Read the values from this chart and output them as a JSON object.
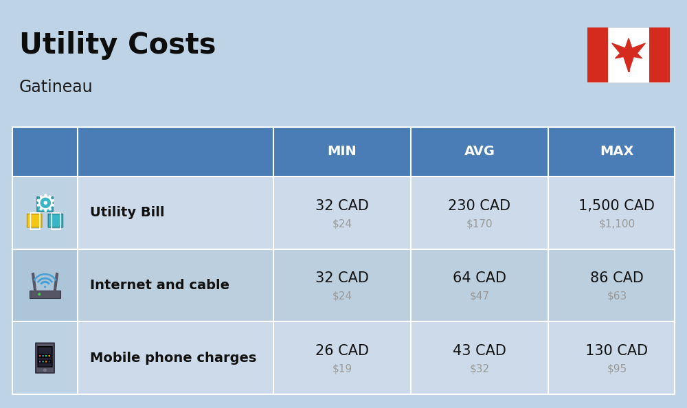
{
  "title": "Utility Costs",
  "subtitle": "Gatineau",
  "background_color": "#bed3e5",
  "header_bg_color": "#4a7db5",
  "row_bg_color_odd": "#ccdaea",
  "row_bg_color_even": "#bccfdf",
  "icon_col_bg_odd": "#bdd2e3",
  "icon_col_bg_even": "#adc5d8",
  "line_color": "#ffffff",
  "header_text_color": "#ffffff",
  "label_color": "#111111",
  "value_color": "#111111",
  "sub_value_color": "#999999",
  "rows": [
    {
      "label": "Utility Bill",
      "min_cad": "32 CAD",
      "min_usd": "$24",
      "avg_cad": "230 CAD",
      "avg_usd": "$170",
      "max_cad": "1,500 CAD",
      "max_usd": "$1,100"
    },
    {
      "label": "Internet and cable",
      "min_cad": "32 CAD",
      "min_usd": "$24",
      "avg_cad": "64 CAD",
      "avg_usd": "$47",
      "max_cad": "86 CAD",
      "max_usd": "$63"
    },
    {
      "label": "Mobile phone charges",
      "min_cad": "26 CAD",
      "min_usd": "$19",
      "avg_cad": "43 CAD",
      "avg_usd": "$32",
      "max_cad": "130 CAD",
      "max_usd": "$95"
    }
  ],
  "title_fontsize": 30,
  "subtitle_fontsize": 17,
  "header_fontsize": 14,
  "label_fontsize": 14,
  "value_fontsize": 15,
  "sub_value_fontsize": 11,
  "flag_red": "#d52b1e",
  "flag_white": "#ffffff"
}
